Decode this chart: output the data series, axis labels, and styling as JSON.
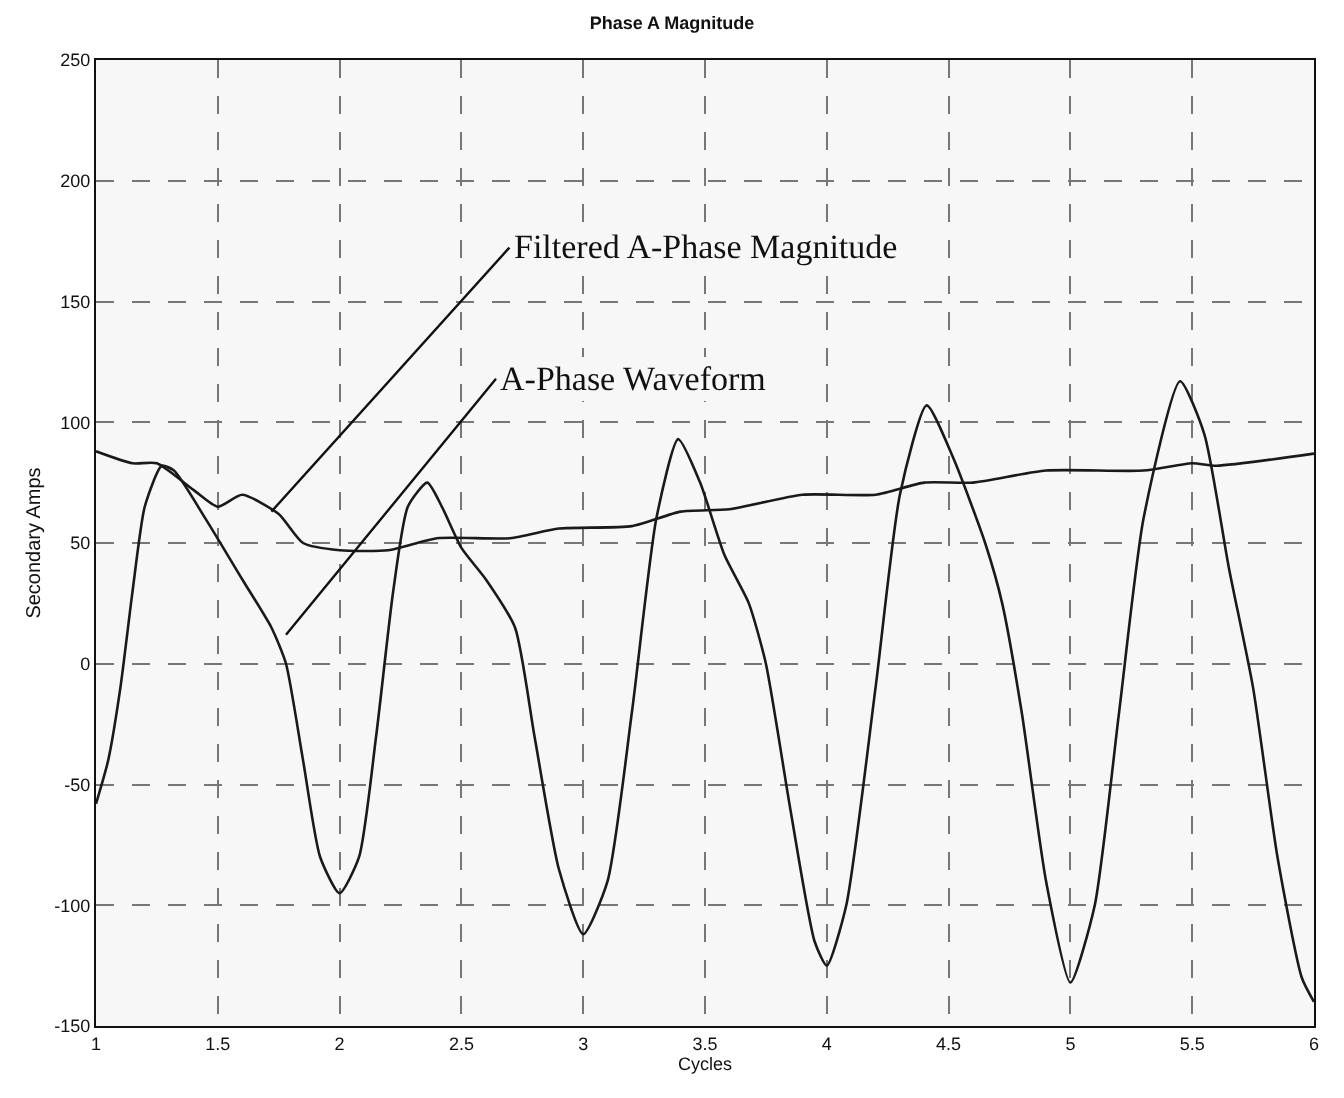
{
  "chart_data": {
    "type": "line",
    "title": "Phase A Magnitude",
    "xlabel": "Cycles",
    "ylabel": "Secondary Amps",
    "xlim": [
      1,
      6
    ],
    "ylim": [
      -150,
      250
    ],
    "xticks": [
      1,
      1.5,
      2,
      2.5,
      3,
      3.5,
      4,
      4.5,
      5,
      5.5,
      6
    ],
    "yticks": [
      -150,
      -100,
      -50,
      0,
      50,
      100,
      150,
      200,
      250
    ],
    "grid": true,
    "series": [
      {
        "color": "#1a1a1a",
        "x": [
          1,
          1.15,
          1.25,
          1.4,
          1.5,
          1.6,
          1.75,
          1.85,
          2.0,
          2.2,
          2.4,
          2.7,
          2.9,
          3.2,
          3.4,
          3.6,
          3.9,
          4.2,
          4.4,
          4.6,
          4.9,
          5.3,
          5.5,
          5.6,
          6
        ],
        "values": [
          88,
          83,
          83,
          72,
          65,
          70,
          62,
          50,
          47,
          47,
          52,
          52,
          56,
          57,
          63,
          64,
          70,
          70,
          75,
          75,
          80,
          80,
          83,
          82,
          87
        ]
      },
      {
        "color": "#1a1a1a",
        "x": [
          1,
          1.05,
          1.1,
          1.15,
          1.2,
          1.27,
          1.32,
          1.45,
          1.6,
          1.72,
          1.78,
          1.85,
          1.92,
          2.0,
          2.08,
          2.15,
          2.22,
          2.28,
          2.36,
          2.42,
          2.5,
          2.6,
          2.72,
          2.8,
          2.9,
          3.0,
          3.1,
          3.2,
          3.3,
          3.39,
          3.48,
          3.58,
          3.68,
          3.75,
          3.85,
          3.95,
          4.0,
          4.08,
          4.2,
          4.3,
          4.41,
          4.52,
          4.65,
          4.72,
          4.8,
          4.9,
          5.0,
          5.1,
          5.2,
          5.3,
          5.45,
          5.55,
          5.65,
          5.75,
          5.85,
          5.95,
          6.0
        ],
        "values": [
          -58,
          -40,
          -10,
          30,
          65,
          82,
          80,
          60,
          35,
          15,
          0,
          -40,
          -80,
          -95,
          -80,
          -30,
          30,
          65,
          75,
          65,
          48,
          35,
          15,
          -30,
          -85,
          -112,
          -90,
          -20,
          60,
          93,
          75,
          45,
          25,
          0,
          -60,
          -115,
          -125,
          -100,
          -10,
          70,
          107,
          85,
          50,
          25,
          -20,
          -90,
          -132,
          -100,
          -20,
          60,
          117,
          95,
          40,
          -10,
          -80,
          -130,
          -140
        ]
      }
    ],
    "annotations": [
      {
        "text": "Filtered A-Phase Magnitude",
        "x": 1.72,
        "y": 63
      },
      {
        "text": "A-Phase Waveform",
        "x": 1.78,
        "y": 12
      }
    ]
  }
}
